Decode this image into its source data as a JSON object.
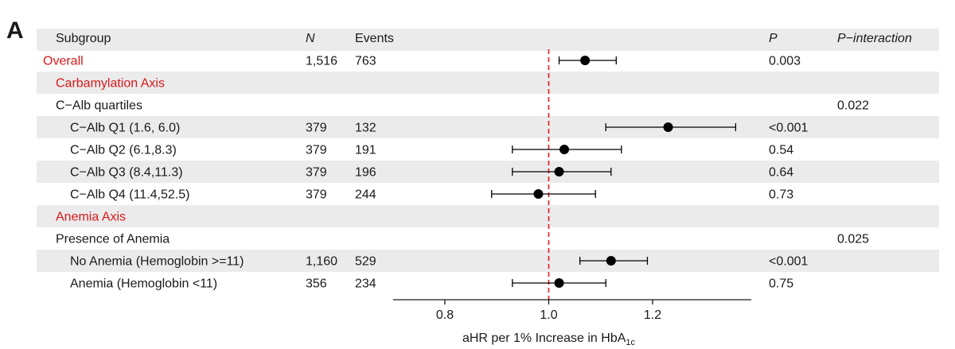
{
  "panel_letter": "A",
  "header": {
    "subgroup": "Subgroup",
    "n": "N",
    "events": "Events",
    "p": "P",
    "p_interaction": "P−interaction"
  },
  "colors": {
    "band": "#ebebeb",
    "section_red": "#d7191c",
    "reference_line": "#e41a1c",
    "points": "#000000"
  },
  "chart_data": {
    "type": "forest",
    "xlabel": "aHR per 1% Increase in HbA",
    "xlabel_subscript": "1c",
    "xlim": [
      0.7,
      1.39
    ],
    "xticks": [
      0.8,
      1.0,
      1.2
    ],
    "xtick_labels": [
      "0.8",
      "1.0",
      "1.2"
    ],
    "reference_value": 1.0,
    "reference_style": "dashed",
    "rows": [
      {
        "label": "Overall",
        "style": "red",
        "indent": 0,
        "band": false,
        "n": "1,516",
        "events": "763",
        "p": "0.003",
        "p_interaction": "",
        "hr": 1.07,
        "lo": 1.02,
        "hi": 1.13
      },
      {
        "label": "Carbamylation Axis",
        "style": "red",
        "indent": 1,
        "band": true,
        "n": "",
        "events": "",
        "p": "",
        "p_interaction": "",
        "hr": null,
        "lo": null,
        "hi": null
      },
      {
        "label": "C−Alb quartiles",
        "style": "normal",
        "indent": 1,
        "band": false,
        "n": "",
        "events": "",
        "p": "",
        "p_interaction": "0.022",
        "hr": null,
        "lo": null,
        "hi": null
      },
      {
        "label": "C−Alb Q1 (1.6, 6.0)",
        "style": "normal",
        "indent": 2,
        "band": true,
        "n": "379",
        "events": "132",
        "p": "<0.001",
        "p_interaction": "",
        "hr": 1.23,
        "lo": 1.11,
        "hi": 1.36
      },
      {
        "label": "C−Alb Q2 (6.1,8.3)",
        "style": "normal",
        "indent": 2,
        "band": false,
        "n": "379",
        "events": "191",
        "p": "0.54",
        "p_interaction": "",
        "hr": 1.03,
        "lo": 0.93,
        "hi": 1.14
      },
      {
        "label": "C−Alb Q3 (8.4,11.3)",
        "style": "normal",
        "indent": 2,
        "band": true,
        "n": "379",
        "events": "196",
        "p": "0.64",
        "p_interaction": "",
        "hr": 1.02,
        "lo": 0.93,
        "hi": 1.12
      },
      {
        "label": "C−Alb Q4 (11.4,52.5)",
        "style": "normal",
        "indent": 2,
        "band": false,
        "n": "379",
        "events": "244",
        "p": "0.73",
        "p_interaction": "",
        "hr": 0.98,
        "lo": 0.89,
        "hi": 1.09
      },
      {
        "label": "Anemia Axis",
        "style": "red",
        "indent": 1,
        "band": true,
        "n": "",
        "events": "",
        "p": "",
        "p_interaction": "",
        "hr": null,
        "lo": null,
        "hi": null
      },
      {
        "label": "Presence of Anemia",
        "style": "normal",
        "indent": 1,
        "band": false,
        "n": "",
        "events": "",
        "p": "",
        "p_interaction": "0.025",
        "hr": null,
        "lo": null,
        "hi": null
      },
      {
        "label": "No Anemia (Hemoglobin >=11)",
        "style": "normal",
        "indent": 2,
        "band": true,
        "n": "1,160",
        "events": "529",
        "p": "<0.001",
        "p_interaction": "",
        "hr": 1.12,
        "lo": 1.06,
        "hi": 1.19
      },
      {
        "label": "Anemia (Hemoglobin <11)",
        "style": "normal",
        "indent": 2,
        "band": false,
        "n": "356",
        "events": "234",
        "p": "0.75",
        "p_interaction": "",
        "hr": 1.02,
        "lo": 0.93,
        "hi": 1.11
      }
    ]
  }
}
